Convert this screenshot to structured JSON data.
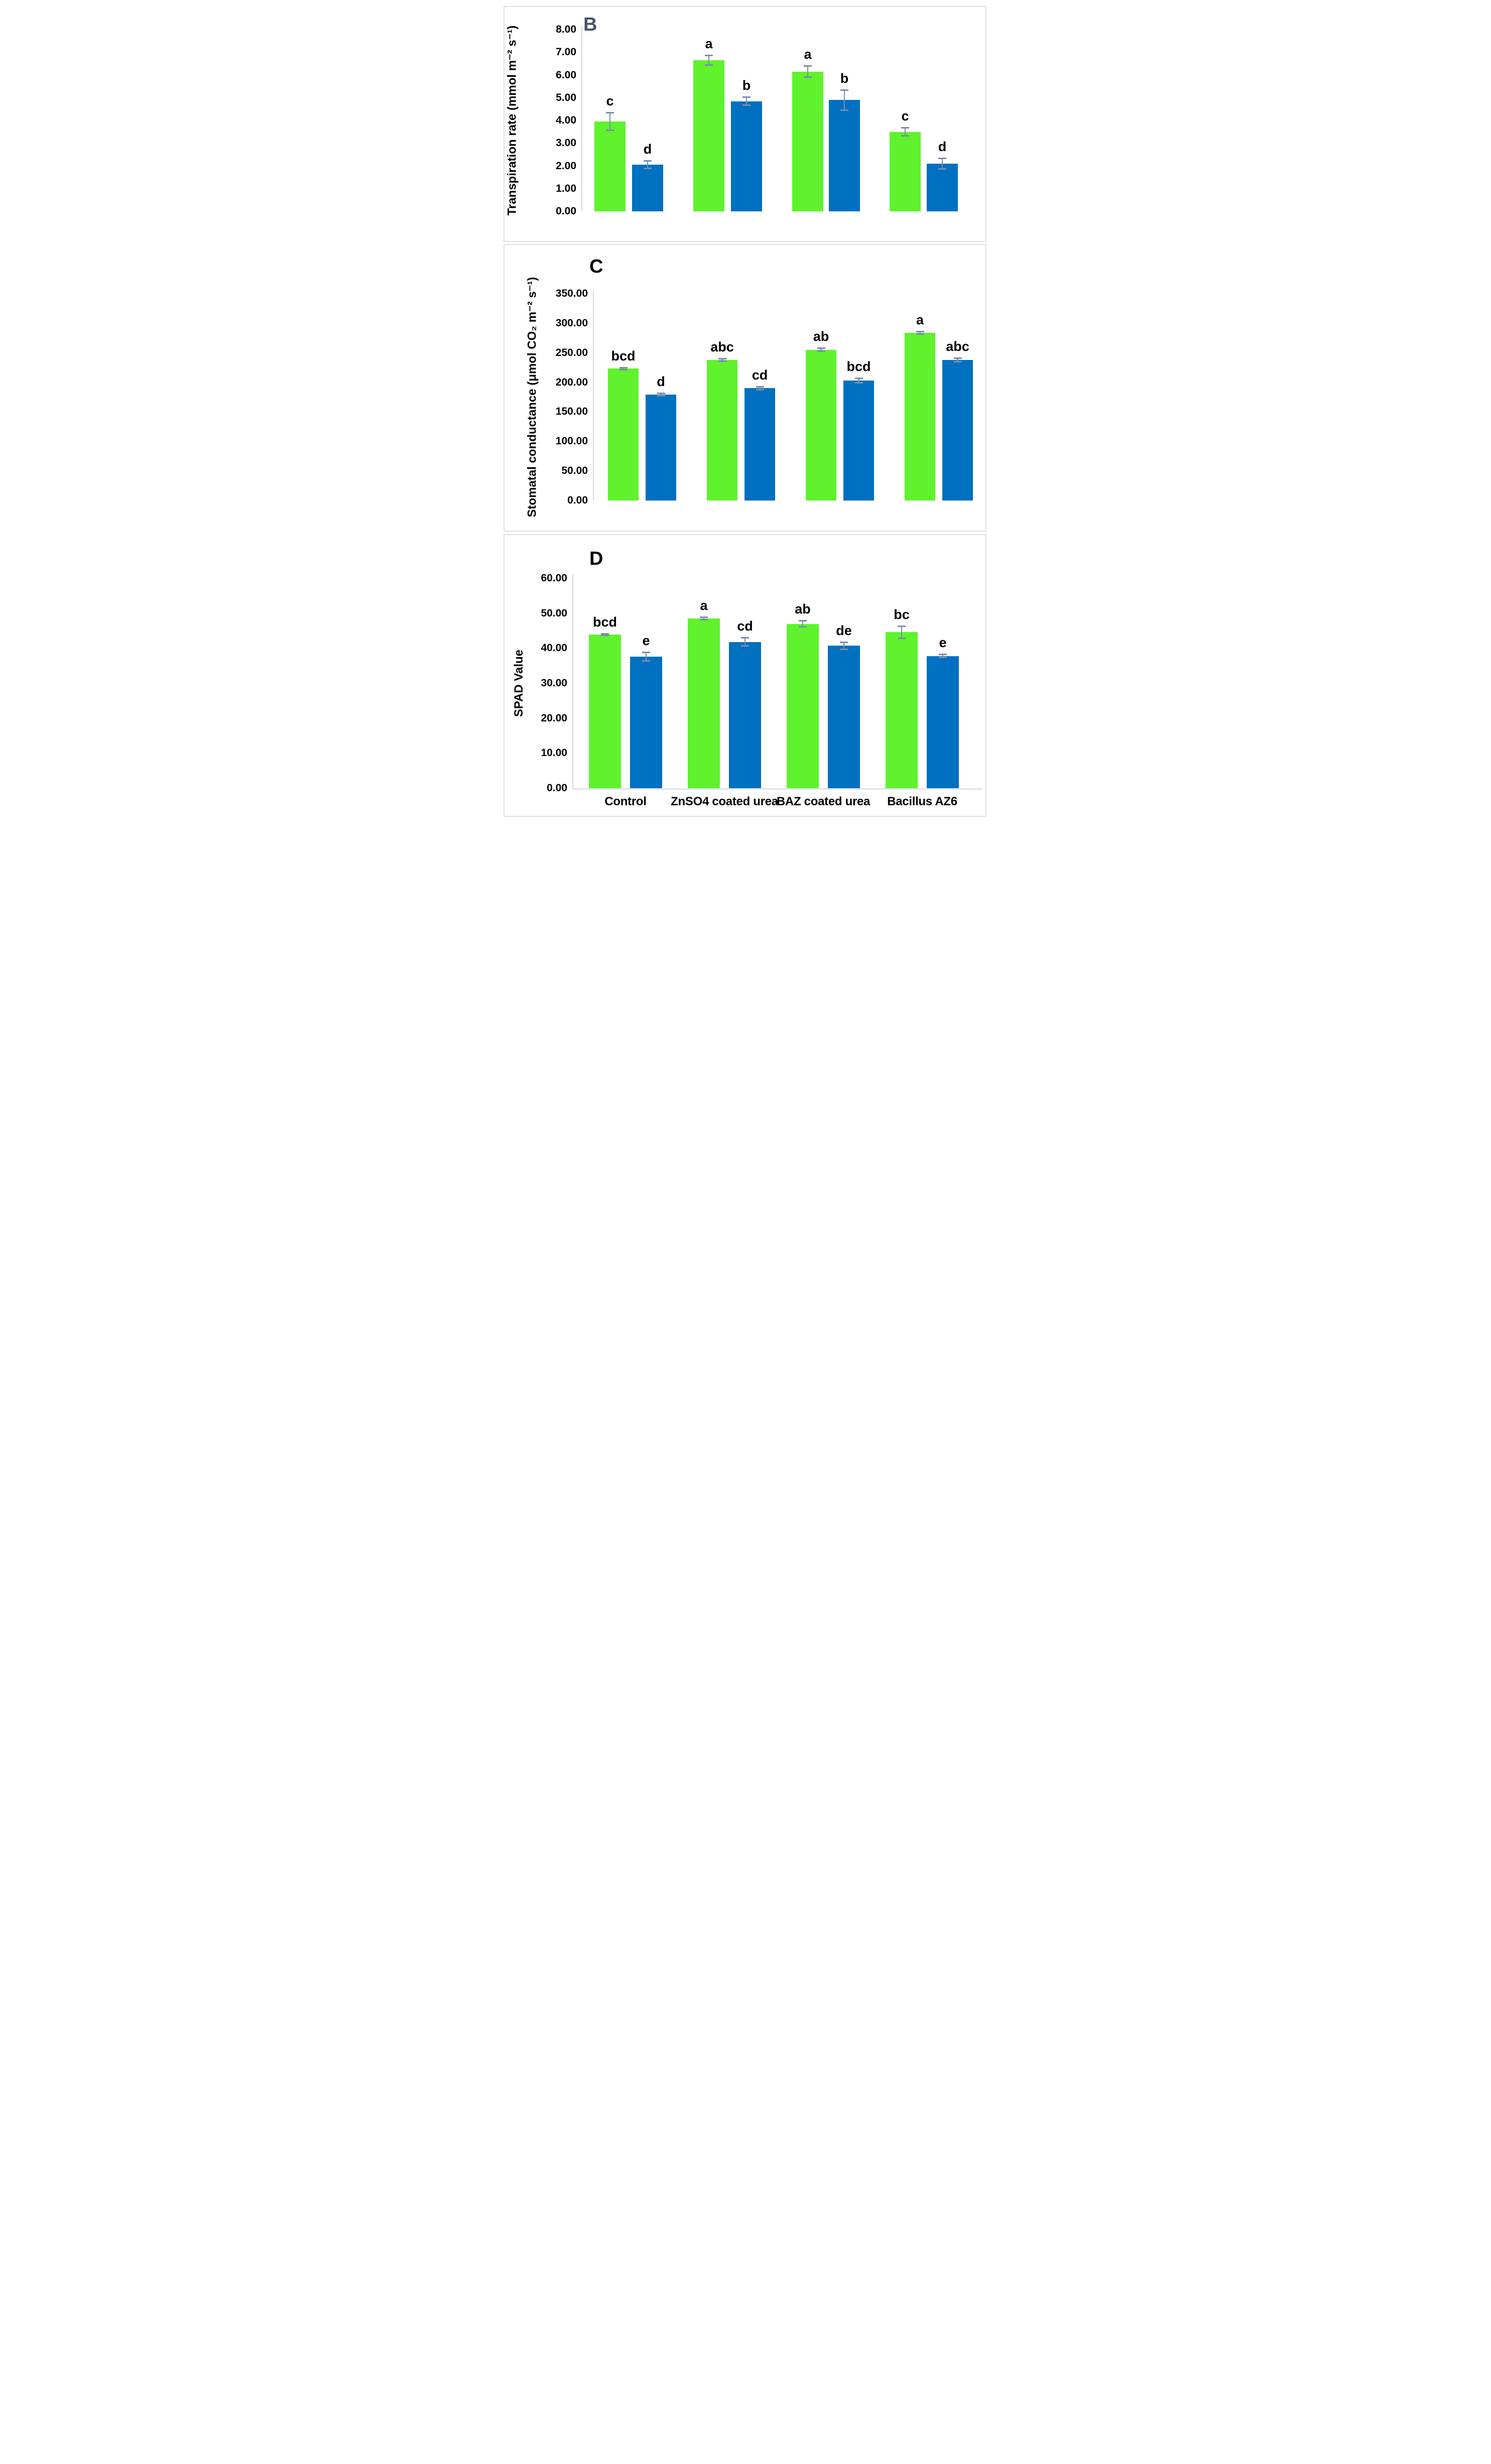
{
  "figure": {
    "background_color": "#ffffff",
    "panel_border_color": "#dce1e9",
    "axis_line_color": "#d9d9d9",
    "error_bar_color": "#7b8da8",
    "series_colors": {
      "green": "#5ff22d",
      "blue": "#0070c0"
    },
    "categories": [
      "Control",
      "ZnSO4 coated urea",
      "BAZ coated urea",
      "Bacillus AZ6"
    ]
  },
  "chart_data": [
    {
      "id": "B",
      "type": "bar",
      "panel_label": "B",
      "panel_label_color": "#44546a",
      "title": "",
      "xlabel": "",
      "ylabel": "Transpiration rate (mmol m⁻² s⁻¹)",
      "ylim": [
        0,
        8
      ],
      "ytick_step": 1,
      "yticks": [
        "8.00",
        "7.00",
        "6.00",
        "5.00",
        "4.00",
        "3.00",
        "2.00",
        "1.00",
        "0.00"
      ],
      "grid": false,
      "legend": "none",
      "show_x_labels": false,
      "categories": [
        "Control",
        "ZnSO4 coated urea",
        "BAZ coated urea",
        "Bacillus AZ6"
      ],
      "series": [
        {
          "key": "green",
          "color": "#5ff22d",
          "values": [
            3.95,
            6.65,
            6.15,
            3.5
          ],
          "errors": [
            0.4,
            0.22,
            0.25,
            0.18
          ],
          "sig_letters": [
            "c",
            "a",
            "a",
            "c"
          ]
        },
        {
          "key": "blue",
          "color": "#0070c0",
          "values": [
            2.05,
            4.85,
            4.9,
            2.1
          ],
          "errors": [
            0.18,
            0.18,
            0.45,
            0.25
          ],
          "sig_letters": [
            "d",
            "b",
            "b",
            "d"
          ]
        }
      ]
    },
    {
      "id": "C",
      "type": "bar",
      "panel_label": "C",
      "panel_label_color": "#000000",
      "title": "",
      "xlabel": "",
      "ylabel": "Stomatal conductance (μmol CO₂ m⁻² s⁻¹)",
      "ylim": [
        0,
        350
      ],
      "ytick_step": 50,
      "yticks": [
        "350.00",
        "300.00",
        "250.00",
        "200.00",
        "150.00",
        "100.00",
        "50.00",
        "0.00"
      ],
      "grid": false,
      "legend": "none",
      "show_x_labels": false,
      "categories": [
        "Control",
        "ZnSO4 coated urea",
        "BAZ coated urea",
        "Bacillus AZ6"
      ],
      "series": [
        {
          "key": "green",
          "color": "#5ff22d",
          "values": [
            223,
            238,
            255,
            284
          ],
          "errors": [
            2.5,
            2.5,
            3,
            2.5
          ],
          "sig_letters": [
            "bcd",
            "abc",
            "ab",
            "a"
          ]
        },
        {
          "key": "blue",
          "color": "#0070c0",
          "values": [
            179,
            190,
            203,
            238
          ],
          "errors": [
            2.5,
            3,
            4,
            3.5
          ],
          "sig_letters": [
            "d",
            "cd",
            "bcd",
            "abc"
          ]
        }
      ]
    },
    {
      "id": "D",
      "type": "bar",
      "panel_label": "D",
      "panel_label_color": "#000000",
      "title": "",
      "xlabel": "",
      "ylabel": "SPAD Value",
      "ylim": [
        0,
        60
      ],
      "ytick_step": 10,
      "yticks": [
        "60.00",
        "50.00",
        "40.00",
        "30.00",
        "20.00",
        "10.00",
        "0.00"
      ],
      "grid": false,
      "legend": "none",
      "show_x_labels": true,
      "categories": [
        "Control",
        "ZnSO4 coated urea",
        "BAZ coated urea",
        "Bacillus AZ6"
      ],
      "series": [
        {
          "key": "green",
          "color": "#5ff22d",
          "values": [
            43.9,
            48.5,
            47.0,
            44.6
          ],
          "errors": [
            0.3,
            0.4,
            0.9,
            1.8
          ],
          "sig_letters": [
            "bcd",
            "a",
            "ab",
            "bc"
          ]
        },
        {
          "key": "blue",
          "color": "#0070c0",
          "values": [
            37.6,
            41.8,
            40.7,
            37.8
          ],
          "errors": [
            1.3,
            1.2,
            1.1,
            0.5
          ],
          "sig_letters": [
            "e",
            "cd",
            "de",
            "e"
          ]
        }
      ]
    }
  ]
}
